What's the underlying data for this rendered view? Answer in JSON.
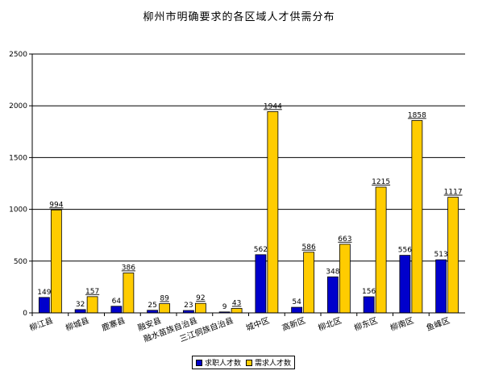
{
  "chart_data": {
    "type": "bar",
    "title": "柳州市明确要求的各区域人才供需分布",
    "categories": [
      "柳江县",
      "柳城县",
      "鹿寨县",
      "融安县",
      "融水苗族自治县",
      "三江侗族自治县",
      "城中区",
      "高新区",
      "柳北区",
      "柳东区",
      "柳南区",
      "鱼峰区"
    ],
    "series": [
      {
        "name": "求职人才数",
        "color": "#0000CC",
        "values": [
          149,
          32,
          64,
          25,
          23,
          9,
          562,
          54,
          348,
          156,
          556,
          513
        ]
      },
      {
        "name": "需求人才数",
        "color": "#FFCC00",
        "values": [
          994,
          157,
          386,
          89,
          92,
          43,
          1944,
          586,
          663,
          1215,
          1858,
          1117
        ]
      }
    ],
    "yticks": [
      0,
      500,
      1000,
      1500,
      2000,
      2500
    ],
    "ylim": [
      0,
      2500
    ],
    "grid": true,
    "legend_position": "bottom"
  }
}
